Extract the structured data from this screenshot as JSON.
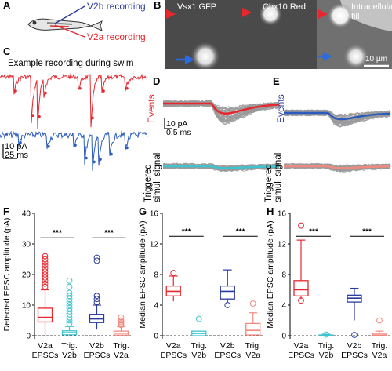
{
  "panels": {
    "A": {
      "letter": "A",
      "v2b_label": "V2b recording",
      "v2a_label": "V2a recording",
      "colors": {
        "v2b": "#2b3a9e",
        "v2a": "#e8262e"
      }
    },
    "B": {
      "letter": "B",
      "images": [
        {
          "title": "Vsx1:GFP"
        },
        {
          "title": "Chx10:Red"
        },
        {
          "title": "Intracellular fill"
        }
      ],
      "scale_bar": "10 µm"
    },
    "C": {
      "letter": "C",
      "title": "Example recording during swim",
      "scale_y": "10 pA",
      "scale_x": "25 ms"
    },
    "D": {
      "letter": "D",
      "events_label": "Events",
      "scale_y": "10 pA",
      "scale_x": "0.5 ms",
      "triggered_label_1": "Triggered",
      "triggered_label_2": "simul. signal"
    },
    "E": {
      "letter": "E",
      "events_label": "Events",
      "triggered_label_1": "Triggered",
      "triggered_label_2": "simul. signal"
    },
    "F": {
      "letter": "F"
    },
    "G": {
      "letter": "G"
    },
    "H": {
      "letter": "H"
    }
  },
  "chart_data": [
    {
      "type": "box",
      "panel": "F",
      "ylabel": "Detected EPSC amplitude (pA)",
      "ylim": [
        0,
        40
      ],
      "yticks": [
        "0",
        "10",
        "20",
        "30",
        "40"
      ],
      "categories": [
        "V2a\nEPSCs",
        "Trig.\nV2b",
        "V2b\nEPSCs",
        "Trig.\nV2a"
      ],
      "cat_line1": [
        "V2a",
        "Trig.",
        "V2b",
        "Trig."
      ],
      "cat_line2": [
        "EPSCs",
        "V2b",
        "EPSCs",
        "V2a"
      ],
      "colors": [
        "#e8262e",
        "#3fc4cf",
        "#2b3a9e",
        "#f08a80"
      ],
      "boxes": [
        {
          "wlo": 0,
          "q1": 4.5,
          "med": 6,
          "q3": 9,
          "whi": 15,
          "outliers": [
            16,
            17,
            18,
            19,
            20,
            21,
            22,
            23,
            24,
            25,
            26
          ]
        },
        {
          "wlo": 0,
          "q1": 0.3,
          "med": 1,
          "q3": 1.6,
          "whi": 3,
          "outliers": [
            4,
            5,
            6,
            7,
            8,
            9,
            10,
            11,
            12,
            13,
            14,
            16,
            18
          ]
        },
        {
          "wlo": 2,
          "q1": 4.3,
          "med": 5.5,
          "q3": 7,
          "whi": 10,
          "outliers": [
            11,
            12,
            13,
            24.5,
            25.5
          ]
        },
        {
          "wlo": 0,
          "q1": 0.2,
          "med": 0.8,
          "q3": 1.5,
          "whi": 3,
          "outliers": [
            3.5,
            4,
            4.5,
            5,
            6
          ]
        }
      ],
      "significance": [
        {
          "pair": [
            0,
            1
          ],
          "label": "***",
          "y": 32
        },
        {
          "pair": [
            2,
            3
          ],
          "label": "***",
          "y": 32
        }
      ]
    },
    {
      "type": "box",
      "panel": "G",
      "ylabel": "Median EPSC amplitude (pA)",
      "ylim": [
        0,
        16
      ],
      "yticks": [
        "0",
        "4",
        "8",
        "12",
        "16"
      ],
      "categories": [
        "V2a\nEPSCs",
        "Trig.\nV2b",
        "V2b\nEPSCs",
        "Trig.\nV2a"
      ],
      "cat_line1": [
        "V2a",
        "Trig.",
        "V2b",
        "Trig."
      ],
      "cat_line2": [
        "EPSCs",
        "V2b",
        "EPSCs",
        "V2a"
      ],
      "colors": [
        "#e8262e",
        "#3fc4cf",
        "#2b3a9e",
        "#f08a80"
      ],
      "boxes": [
        {
          "wlo": 4.5,
          "q1": 5.2,
          "med": 5.8,
          "q3": 6.5,
          "whi": 7.8,
          "outliers": [
            8.2
          ]
        },
        {
          "wlo": 0,
          "q1": 0,
          "med": 0.3,
          "q3": 0.6,
          "whi": 0.6,
          "outliers": [
            2.2
          ]
        },
        {
          "wlo": 4.4,
          "q1": 4.8,
          "med": 5.8,
          "q3": 6.5,
          "whi": 8.6,
          "outliers": [
            4.0
          ]
        },
        {
          "wlo": 0,
          "q1": 0.1,
          "med": 0.7,
          "q3": 1.6,
          "whi": 3.0,
          "outliers": [
            4.2
          ]
        }
      ],
      "significance": [
        {
          "pair": [
            0,
            1
          ],
          "label": "***",
          "y": 13
        },
        {
          "pair": [
            2,
            3
          ],
          "label": "***",
          "y": 13
        }
      ]
    },
    {
      "type": "box",
      "panel": "H",
      "ylabel": "Median EPSC amplitude (pA)",
      "ylim": [
        0,
        16
      ],
      "yticks": [
        "0",
        "4",
        "8",
        "12",
        "16"
      ],
      "categories": [
        "V2a\nEPSCs",
        "Trig.\nV2b",
        "V2b\nEPSCs",
        "Trig.\nV2a"
      ],
      "cat_line1": [
        "V2a",
        "Trig.",
        "V2b",
        "Trig."
      ],
      "cat_line2": [
        "EPSCs",
        "V2b",
        "EPSCs",
        "V2a"
      ],
      "colors": [
        "#e8262e",
        "#3fc4cf",
        "#2b3a9e",
        "#f08a80"
      ],
      "boxes": [
        {
          "wlo": 4.8,
          "q1": 5.2,
          "med": 6.0,
          "q3": 7.2,
          "whi": 12.5,
          "outliers": [
            14.4,
            4.6
          ]
        },
        {
          "wlo": 0,
          "q1": 0,
          "med": 0.05,
          "q3": 0.1,
          "whi": 0.2,
          "outliers": [
            0.15
          ]
        },
        {
          "wlo": 2.0,
          "q1": 4.4,
          "med": 4.9,
          "q3": 5.3,
          "whi": 6.2,
          "outliers": [
            0.1
          ]
        },
        {
          "wlo": 0,
          "q1": 0,
          "med": 0.1,
          "q3": 0.3,
          "whi": 0.6,
          "outliers": [
            2.0
          ]
        }
      ],
      "significance": [
        {
          "pair": [
            0,
            1
          ],
          "label": "***",
          "y": 13
        },
        {
          "pair": [
            2,
            3
          ],
          "label": "***",
          "y": 13
        }
      ]
    }
  ]
}
